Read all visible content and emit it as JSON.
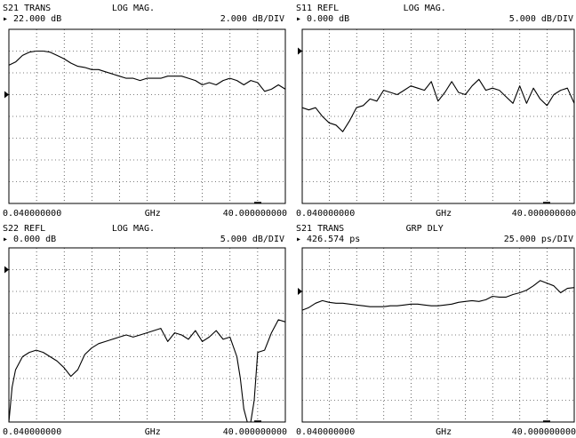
{
  "chart_data": [
    {
      "type": "line",
      "parameter": "S21 TRANS",
      "format": "LOG MAG.",
      "reference": "22.000 dB",
      "scale": "2.000 dB/DIV",
      "reference_value": 22,
      "scale_value": 2,
      "reference_division": 5,
      "start": "0.040000000",
      "stop": "40.000000000",
      "unit": "GHz",
      "x": [
        0.04,
        1,
        2,
        3,
        4,
        5,
        6,
        7,
        8,
        9,
        10,
        11,
        12,
        13,
        14,
        15,
        16,
        17,
        18,
        19,
        20,
        21,
        22,
        23,
        24,
        25,
        26,
        27,
        28,
        29,
        30,
        31,
        32,
        33,
        34,
        35,
        36,
        37,
        38,
        39,
        40
      ],
      "y": [
        24.7,
        25.0,
        25.6,
        25.9,
        26.0,
        26.0,
        25.9,
        25.6,
        25.3,
        24.9,
        24.6,
        24.5,
        24.3,
        24.3,
        24.1,
        23.9,
        23.7,
        23.5,
        23.5,
        23.3,
        23.5,
        23.5,
        23.5,
        23.7,
        23.7,
        23.7,
        23.5,
        23.3,
        22.9,
        23.1,
        22.9,
        23.3,
        23.5,
        23.3,
        22.9,
        23.3,
        23.1,
        22.3,
        22.5,
        22.9,
        22.5
      ]
    },
    {
      "type": "line",
      "parameter": "S11 REFL",
      "format": "LOG MAG.",
      "reference": "0.000 dB",
      "scale": "5.000 dB/DIV",
      "reference_value": 0,
      "scale_value": 5,
      "reference_division": 7,
      "start": "0.040000000",
      "stop": "40.000000000",
      "unit": "GHz",
      "x": [
        0.04,
        1,
        2,
        3,
        4,
        5,
        6,
        7,
        8,
        9,
        10,
        11,
        12,
        13,
        14,
        15,
        16,
        17,
        18,
        19,
        20,
        21,
        22,
        23,
        24,
        25,
        26,
        27,
        28,
        29,
        30,
        31,
        32,
        33,
        34,
        35,
        36,
        37,
        38,
        39,
        40
      ],
      "y": [
        -13,
        -13.5,
        -13,
        -15,
        -16.5,
        -17,
        -18.5,
        -16,
        -13,
        -12.5,
        -11,
        -11.5,
        -9,
        -9.5,
        -10,
        -9,
        -8,
        -8.5,
        -9,
        -7,
        -11.5,
        -9.5,
        -7,
        -9.5,
        -10,
        -8,
        -6.5,
        -9,
        -8.5,
        -9,
        -10.5,
        -12,
        -8,
        -12,
        -8.5,
        -11,
        -12.5,
        -10,
        -9,
        -8.5,
        -12
      ]
    },
    {
      "type": "line",
      "parameter": "S22 REFL",
      "format": "LOG MAG.",
      "reference": "0.000 dB",
      "scale": "5.000 dB/DIV",
      "reference_value": 0,
      "scale_value": 5,
      "reference_division": 7,
      "start": "0.040000000",
      "stop": "40.000000000",
      "unit": "GHz",
      "x": [
        0.04,
        0.5,
        1,
        2,
        3,
        4,
        5,
        6,
        7,
        8,
        9,
        10,
        11,
        12,
        13,
        14,
        15,
        16,
        17,
        18,
        19,
        20,
        21,
        22,
        23,
        24,
        25,
        26,
        27,
        28,
        29,
        30,
        31,
        32,
        33,
        33.5,
        34,
        34.5,
        35,
        35.5,
        36,
        37,
        38,
        39,
        40
      ],
      "y": [
        -40,
        -27,
        -23,
        -20,
        -19,
        -18.5,
        -19,
        -20,
        -21,
        -22.5,
        -24.5,
        -23,
        -19.5,
        -18,
        -17,
        -16.5,
        -16,
        -15.5,
        -15,
        -15.5,
        -15,
        -14.5,
        -14,
        -13.5,
        -16.5,
        -14.5,
        -15,
        -16,
        -14,
        -16.5,
        -15.5,
        -14,
        -16,
        -15.5,
        -20,
        -25,
        -32,
        -36,
        -40,
        -30,
        -19,
        -18.5,
        -14.5,
        -11.5,
        -12
      ]
    },
    {
      "type": "line",
      "parameter": "S21 TRANS",
      "format": "GRP DLY",
      "reference": "426.574 ps",
      "scale": "25.000 ps/DIV",
      "reference_value": 426.574,
      "scale_value": 25,
      "reference_division": 6,
      "start": "0.040000000",
      "stop": "40.000000000",
      "unit": "GHz",
      "x": [
        0.04,
        1,
        2,
        3,
        4,
        5,
        6,
        7,
        8,
        9,
        10,
        11,
        12,
        13,
        14,
        15,
        16,
        17,
        18,
        19,
        20,
        21,
        22,
        23,
        24,
        25,
        26,
        27,
        28,
        29,
        30,
        31,
        32,
        33,
        34,
        35,
        36,
        37,
        38,
        39,
        40
      ],
      "y": [
        405,
        408,
        413,
        416,
        414,
        413,
        413,
        412,
        411,
        410,
        409,
        409,
        409,
        410,
        410,
        411,
        412,
        412,
        411,
        410,
        410,
        411,
        412,
        414,
        415,
        416,
        415,
        417,
        421,
        420,
        420,
        423,
        425,
        428,
        433,
        439,
        436,
        433,
        425,
        430,
        431
      ]
    }
  ]
}
